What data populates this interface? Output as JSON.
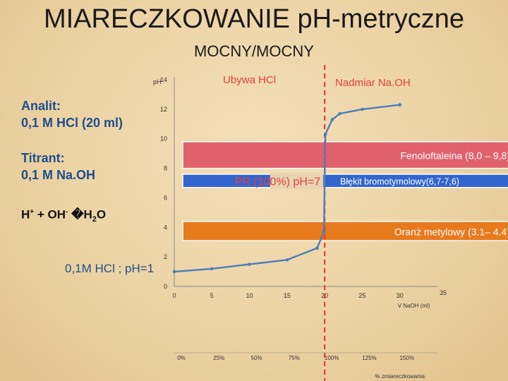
{
  "title": "MIARECZKOWANIE pH-metryczne",
  "subtitle": "MOCNY/MOCNY",
  "analyte": {
    "line1": "Analit:",
    "line2": "0,1 M HCl (20 ml)"
  },
  "titrant": {
    "line1": "Titrant:",
    "line2": "0,1 M Na.OH"
  },
  "reaction": {
    "left": "H",
    "plus_sup": "+",
    "plus": " + OH",
    "minus_sup": "-",
    "arrow": " �H",
    "water_sub": "2",
    "water": "O"
  },
  "annotations": {
    "decreasing_hcl": "Ubywa HCl",
    "excess_naoh": "Nadmiar Na.OH",
    "equivalence_point": "PR (100%) pH=7",
    "start_label": "0,1M HCl ; pH=1"
  },
  "indicators": [
    {
      "label": "Fenoloftaleina (8,0 – 9,8)",
      "from": 8.0,
      "to": 9.8,
      "color": "#e0616b"
    },
    {
      "label": "Błękit bromotymolowy(6,7-7,6)",
      "from": 6.7,
      "to": 7.6,
      "color": "#3366cc"
    },
    {
      "label": "Oranż metylowy (3.1– 4.4)",
      "from": 3.1,
      "to": 4.4,
      "color": "#e87a1e"
    }
  ],
  "colors": {
    "curve": "#4a7ebb",
    "equivalence_line": "#e04040",
    "axis": "#888888"
  },
  "chart_data": {
    "type": "line",
    "ylabel": "pH",
    "xlabel": "V NaOH (ml)",
    "x2label": "% zmiareczkowania",
    "xlim": [
      0,
      35
    ],
    "ylim": [
      0,
      14
    ],
    "x_ticks": [
      0,
      5,
      10,
      15,
      20,
      25,
      30,
      35
    ],
    "y_ticks": [
      0,
      2,
      4,
      6,
      8,
      10,
      12,
      14
    ],
    "percent_ticks": [
      {
        "x": 0,
        "label": "0%"
      },
      {
        "x": 5,
        "label": "25%"
      },
      {
        "x": 10,
        "label": "50%"
      },
      {
        "x": 15,
        "label": "75%"
      },
      {
        "x": 20,
        "label": "100%"
      },
      {
        "x": 25,
        "label": "125%"
      },
      {
        "x": 30,
        "label": "150%"
      }
    ],
    "equivalence_x": 20,
    "series": [
      {
        "x": [
          0,
          5,
          10,
          15,
          19,
          19.9,
          20,
          20.1,
          21,
          22,
          25,
          30
        ],
        "y": [
          1.0,
          1.2,
          1.5,
          1.8,
          2.6,
          3.7,
          7.0,
          10.3,
          11.3,
          11.7,
          12.0,
          12.3
        ]
      }
    ]
  }
}
